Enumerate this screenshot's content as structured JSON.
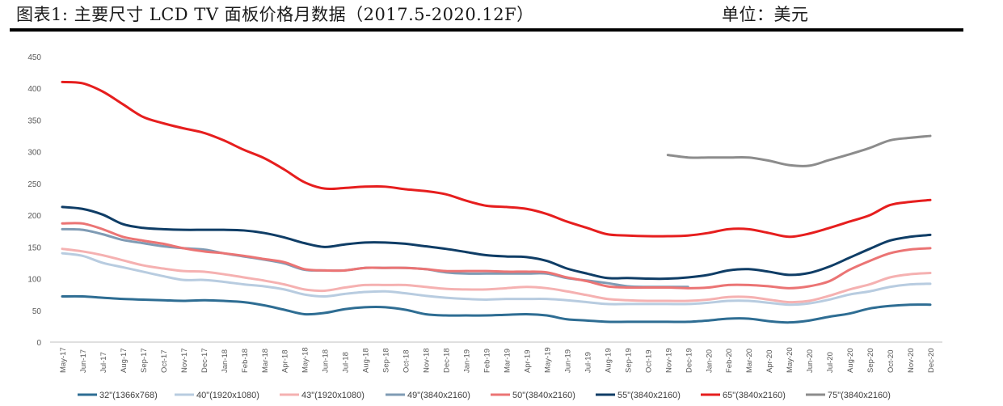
{
  "header": {
    "title": "图表1:   主要尺寸 LCD TV 面板价格月数据（2017.5-2020.12F）",
    "unit": "单位：美元"
  },
  "chart_data": {
    "type": "line",
    "title": "主要尺寸 LCD TV 面板价格月数据（2017.5-2020.12F）",
    "xlabel": "",
    "ylabel": "",
    "ylim": [
      0,
      450
    ],
    "yticks": [
      0,
      50,
      100,
      150,
      200,
      250,
      300,
      350,
      400,
      450
    ],
    "grid": false,
    "legend_position": "bottom",
    "categories": [
      "May-17",
      "Jun-17",
      "Jul-17",
      "Aug-17",
      "Sep-17",
      "Oct-17",
      "Nov-17",
      "Dec-17",
      "Jan-18",
      "Feb-18",
      "Mar-18",
      "Apr-18",
      "May-18",
      "Jun-18",
      "Jul-18",
      "Aug-18",
      "Sep-18",
      "Oct-18",
      "Nov-18",
      "Dec-18",
      "Jan-19",
      "Feb-19",
      "Mar-19",
      "Apr-19",
      "May-19",
      "Jun-19",
      "Jul-19",
      "Aug-19",
      "Sep-19",
      "Oct-19",
      "Nov-19",
      "Dec-19",
      "Jan-20",
      "Feb-20",
      "Mar-20",
      "Apr-20",
      "May-20",
      "Jun-20",
      "Jul-20",
      "Aug-20",
      "Sep-20",
      "Oct-20",
      "Nov-20",
      "Dec-20"
    ],
    "series": [
      {
        "name": "32\"(1366x768)",
        "color": "#2e6d93",
        "values": [
          72,
          72,
          70,
          68,
          67,
          66,
          65,
          66,
          65,
          63,
          58,
          51,
          44,
          46,
          52,
          55,
          55,
          51,
          44,
          42,
          42,
          42,
          43,
          44,
          42,
          36,
          34,
          32,
          32,
          32,
          32,
          32,
          34,
          37,
          37,
          33,
          31,
          34,
          40,
          45,
          53,
          57,
          59,
          59
        ]
      },
      {
        "name": "40\"(1920x1080)",
        "color": "#b8cce0",
        "values": [
          140,
          136,
          125,
          118,
          111,
          104,
          98,
          98,
          95,
          91,
          88,
          83,
          75,
          72,
          76,
          79,
          80,
          77,
          73,
          70,
          68,
          67,
          68,
          68,
          68,
          66,
          63,
          60,
          60,
          60,
          60,
          60,
          62,
          65,
          65,
          62,
          59,
          61,
          67,
          75,
          80,
          87,
          91,
          92
        ]
      },
      {
        "name": "43\"(1920x1080)",
        "color": "#f5b1b1",
        "values": [
          147,
          143,
          137,
          129,
          121,
          116,
          112,
          111,
          107,
          102,
          97,
          91,
          83,
          81,
          86,
          90,
          90,
          90,
          87,
          84,
          83,
          83,
          85,
          87,
          85,
          80,
          74,
          68,
          66,
          65,
          65,
          65,
          67,
          71,
          71,
          67,
          63,
          65,
          73,
          83,
          91,
          102,
          107,
          109
        ]
      },
      {
        "name": "49\"(3840x2160)",
        "color": "#7f9bb4",
        "values": [
          178,
          177,
          170,
          161,
          156,
          151,
          148,
          146,
          140,
          135,
          130,
          124,
          114,
          113,
          113,
          117,
          117,
          117,
          115,
          110,
          108,
          108,
          108,
          108,
          108,
          101,
          97,
          93,
          88,
          87,
          87,
          87,
          null,
          null,
          null,
          null,
          null,
          null,
          null,
          null,
          null,
          null,
          null,
          null
        ]
      },
      {
        "name": "50\"(3840x2160)",
        "color": "#eb7474",
        "values": [
          187,
          187,
          178,
          166,
          160,
          155,
          148,
          143,
          140,
          136,
          131,
          126,
          115,
          113,
          113,
          117,
          117,
          117,
          115,
          112,
          112,
          112,
          111,
          111,
          110,
          102,
          96,
          88,
          86,
          86,
          86,
          85,
          86,
          90,
          90,
          88,
          85,
          88,
          96,
          114,
          128,
          140,
          146,
          148
        ]
      },
      {
        "name": "55\"(3840x2160)",
        "color": "#0f3d66",
        "values": [
          213,
          210,
          201,
          186,
          180,
          178,
          177,
          177,
          177,
          176,
          172,
          165,
          156,
          150,
          154,
          157,
          157,
          155,
          151,
          147,
          142,
          137,
          135,
          134,
          128,
          116,
          108,
          101,
          101,
          100,
          100,
          102,
          106,
          113,
          115,
          111,
          106,
          109,
          119,
          133,
          147,
          160,
          166,
          169
        ]
      },
      {
        "name": "65\"(3840x2160)",
        "color": "#e61e1e",
        "values": [
          410,
          408,
          395,
          375,
          355,
          345,
          337,
          330,
          318,
          303,
          290,
          272,
          252,
          242,
          243,
          245,
          245,
          241,
          238,
          233,
          223,
          215,
          213,
          210,
          202,
          190,
          180,
          170,
          168,
          167,
          167,
          168,
          172,
          178,
          178,
          172,
          166,
          171,
          180,
          190,
          200,
          216,
          221,
          224
        ]
      },
      {
        "name": "75\"(3840x2160)",
        "color": "#8c8c8c",
        "values": [
          null,
          null,
          null,
          null,
          null,
          null,
          null,
          null,
          null,
          null,
          null,
          null,
          null,
          null,
          null,
          null,
          null,
          null,
          null,
          null,
          null,
          null,
          null,
          null,
          null,
          null,
          null,
          null,
          null,
          null,
          295,
          291,
          291,
          291,
          291,
          286,
          279,
          278,
          287,
          296,
          306,
          318,
          322,
          325
        ]
      }
    ]
  }
}
